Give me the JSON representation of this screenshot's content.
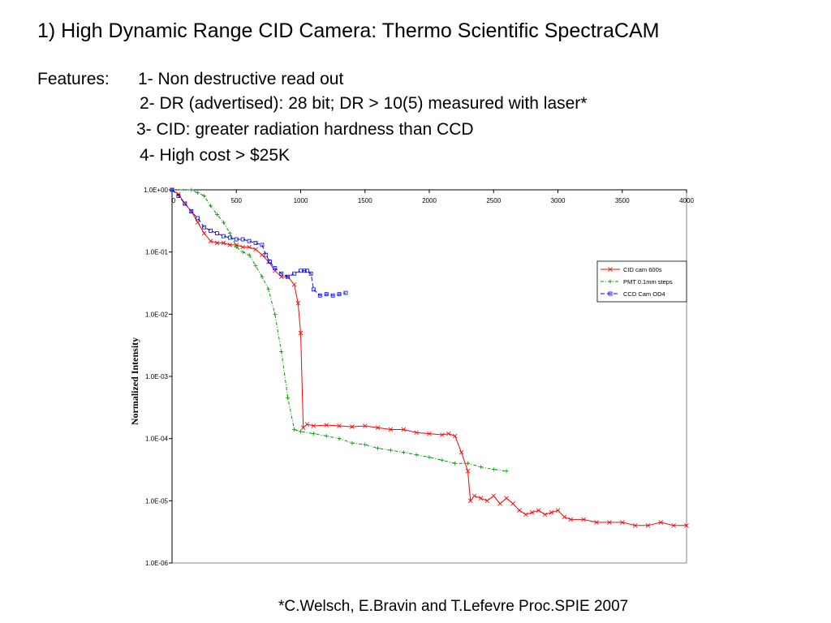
{
  "slide": {
    "title": "1)  High Dynamic Range CID Camera: Thermo Scientific SpectraCAM",
    "features_label": "Features:",
    "features": [
      "1-  Non destructive read out",
      "2-  DR (advertised): 28 bit;  DR > 10(5) measured with laser*",
      "3-  CID: greater radiation hardness than CCD",
      "4-  High cost  > $25K"
    ],
    "citation": "*C.Welsch, E.Bravin and T.Lefevre Proc.SPIE 2007"
  },
  "chart_data": {
    "type": "line",
    "xlabel": "",
    "ylabel": "Normalized Intensity",
    "xlim": [
      0,
      4000
    ],
    "ylim": [
      1e-06,
      1
    ],
    "yscale": "log",
    "x_ticks": [
      "0",
      "500",
      "1000",
      "1500",
      "2000",
      "2500",
      "3000",
      "3500",
      "4000"
    ],
    "y_ticks": [
      "1.0E+00",
      "1.0E-01",
      "1.0E-02",
      "1.0E-03",
      "1.0E-04",
      "1.0E-05",
      "1.0E-06"
    ],
    "x_tick_values": [
      0,
      500,
      1000,
      1500,
      2000,
      2500,
      3000,
      3500,
      4000
    ],
    "y_tick_values": [
      1,
      0.1,
      0.01,
      0.001,
      0.0001,
      1e-05,
      1e-06
    ],
    "grid": false,
    "legend_position": "right",
    "series": [
      {
        "name": "CID cam 600s",
        "color": "#ff0000",
        "marker": "x",
        "dash": "",
        "x": [
          0,
          50,
          100,
          150,
          200,
          250,
          300,
          350,
          400,
          450,
          500,
          550,
          600,
          650,
          700,
          750,
          800,
          850,
          900,
          950,
          980,
          1000,
          1020,
          1050,
          1100,
          1200,
          1300,
          1400,
          1500,
          1600,
          1700,
          1800,
          1900,
          2000,
          2100,
          2150,
          2200,
          2250,
          2300,
          2320,
          2350,
          2400,
          2450,
          2500,
          2550,
          2600,
          2650,
          2700,
          2750,
          2800,
          2850,
          2900,
          2950,
          3000,
          3050,
          3100,
          3200,
          3300,
          3400,
          3500,
          3600,
          3700,
          3800,
          3900,
          4000
        ],
        "y": [
          1,
          0.85,
          0.6,
          0.45,
          0.3,
          0.2,
          0.15,
          0.14,
          0.14,
          0.13,
          0.13,
          0.12,
          0.12,
          0.11,
          0.09,
          0.07,
          0.05,
          0.04,
          0.04,
          0.03,
          0.015,
          0.005,
          0.00015,
          0.00017,
          0.00016,
          0.000165,
          0.00016,
          0.000155,
          0.00016,
          0.00015,
          0.00014,
          0.00014,
          0.000125,
          0.00012,
          0.000115,
          0.00012,
          0.00011,
          6e-05,
          3e-05,
          1e-05,
          1.2e-05,
          1.1e-05,
          1e-05,
          1.2e-05,
          9e-06,
          1.1e-05,
          9e-06,
          7e-06,
          6e-06,
          6.5e-06,
          7e-06,
          6e-06,
          6.5e-06,
          7e-06,
          5.5e-06,
          5e-06,
          5e-06,
          4.5e-06,
          4.5e-06,
          4.5e-06,
          4e-06,
          4e-06,
          4.5e-06,
          4e-06,
          4e-06
        ]
      },
      {
        "name": "PMT 0.1mm steps",
        "color": "#009900",
        "marker": "+",
        "dash": "4,2,1,2",
        "x": [
          0,
          150,
          200,
          250,
          300,
          350,
          400,
          450,
          500,
          550,
          600,
          650,
          700,
          750,
          800,
          850,
          900,
          950,
          1000,
          1100,
          1200,
          1300,
          1400,
          1500,
          1600,
          1700,
          1800,
          1900,
          2000,
          2100,
          2200,
          2300,
          2400,
          2500,
          2600
        ],
        "y": [
          1,
          1,
          0.9,
          0.8,
          0.55,
          0.4,
          0.3,
          0.2,
          0.12,
          0.1,
          0.09,
          0.06,
          0.04,
          0.025,
          0.01,
          0.0025,
          0.00045,
          0.00014,
          0.00013,
          0.00012,
          0.00011,
          0.0001,
          8.5e-05,
          8e-05,
          7e-05,
          6.5e-05,
          6e-05,
          5.5e-05,
          5e-05,
          4.5e-05,
          4e-05,
          4e-05,
          3.5e-05,
          3.2e-05,
          3e-05
        ]
      },
      {
        "name": "CCD Cam OD4",
        "color": "#0000ff",
        "marker": "square",
        "dash": "5,3",
        "x": [
          0,
          50,
          100,
          150,
          200,
          250,
          300,
          350,
          400,
          450,
          500,
          550,
          600,
          650,
          700,
          730,
          760,
          800,
          850,
          900,
          950,
          1000,
          1030,
          1050,
          1080,
          1100,
          1150,
          1200,
          1250,
          1300,
          1350
        ],
        "y": [
          1,
          0.8,
          0.6,
          0.45,
          0.35,
          0.25,
          0.22,
          0.2,
          0.18,
          0.17,
          0.16,
          0.16,
          0.15,
          0.14,
          0.13,
          0.09,
          0.07,
          0.055,
          0.045,
          0.04,
          0.045,
          0.05,
          0.05,
          0.05,
          0.045,
          0.025,
          0.02,
          0.021,
          0.02,
          0.021,
          0.022
        ]
      }
    ]
  }
}
